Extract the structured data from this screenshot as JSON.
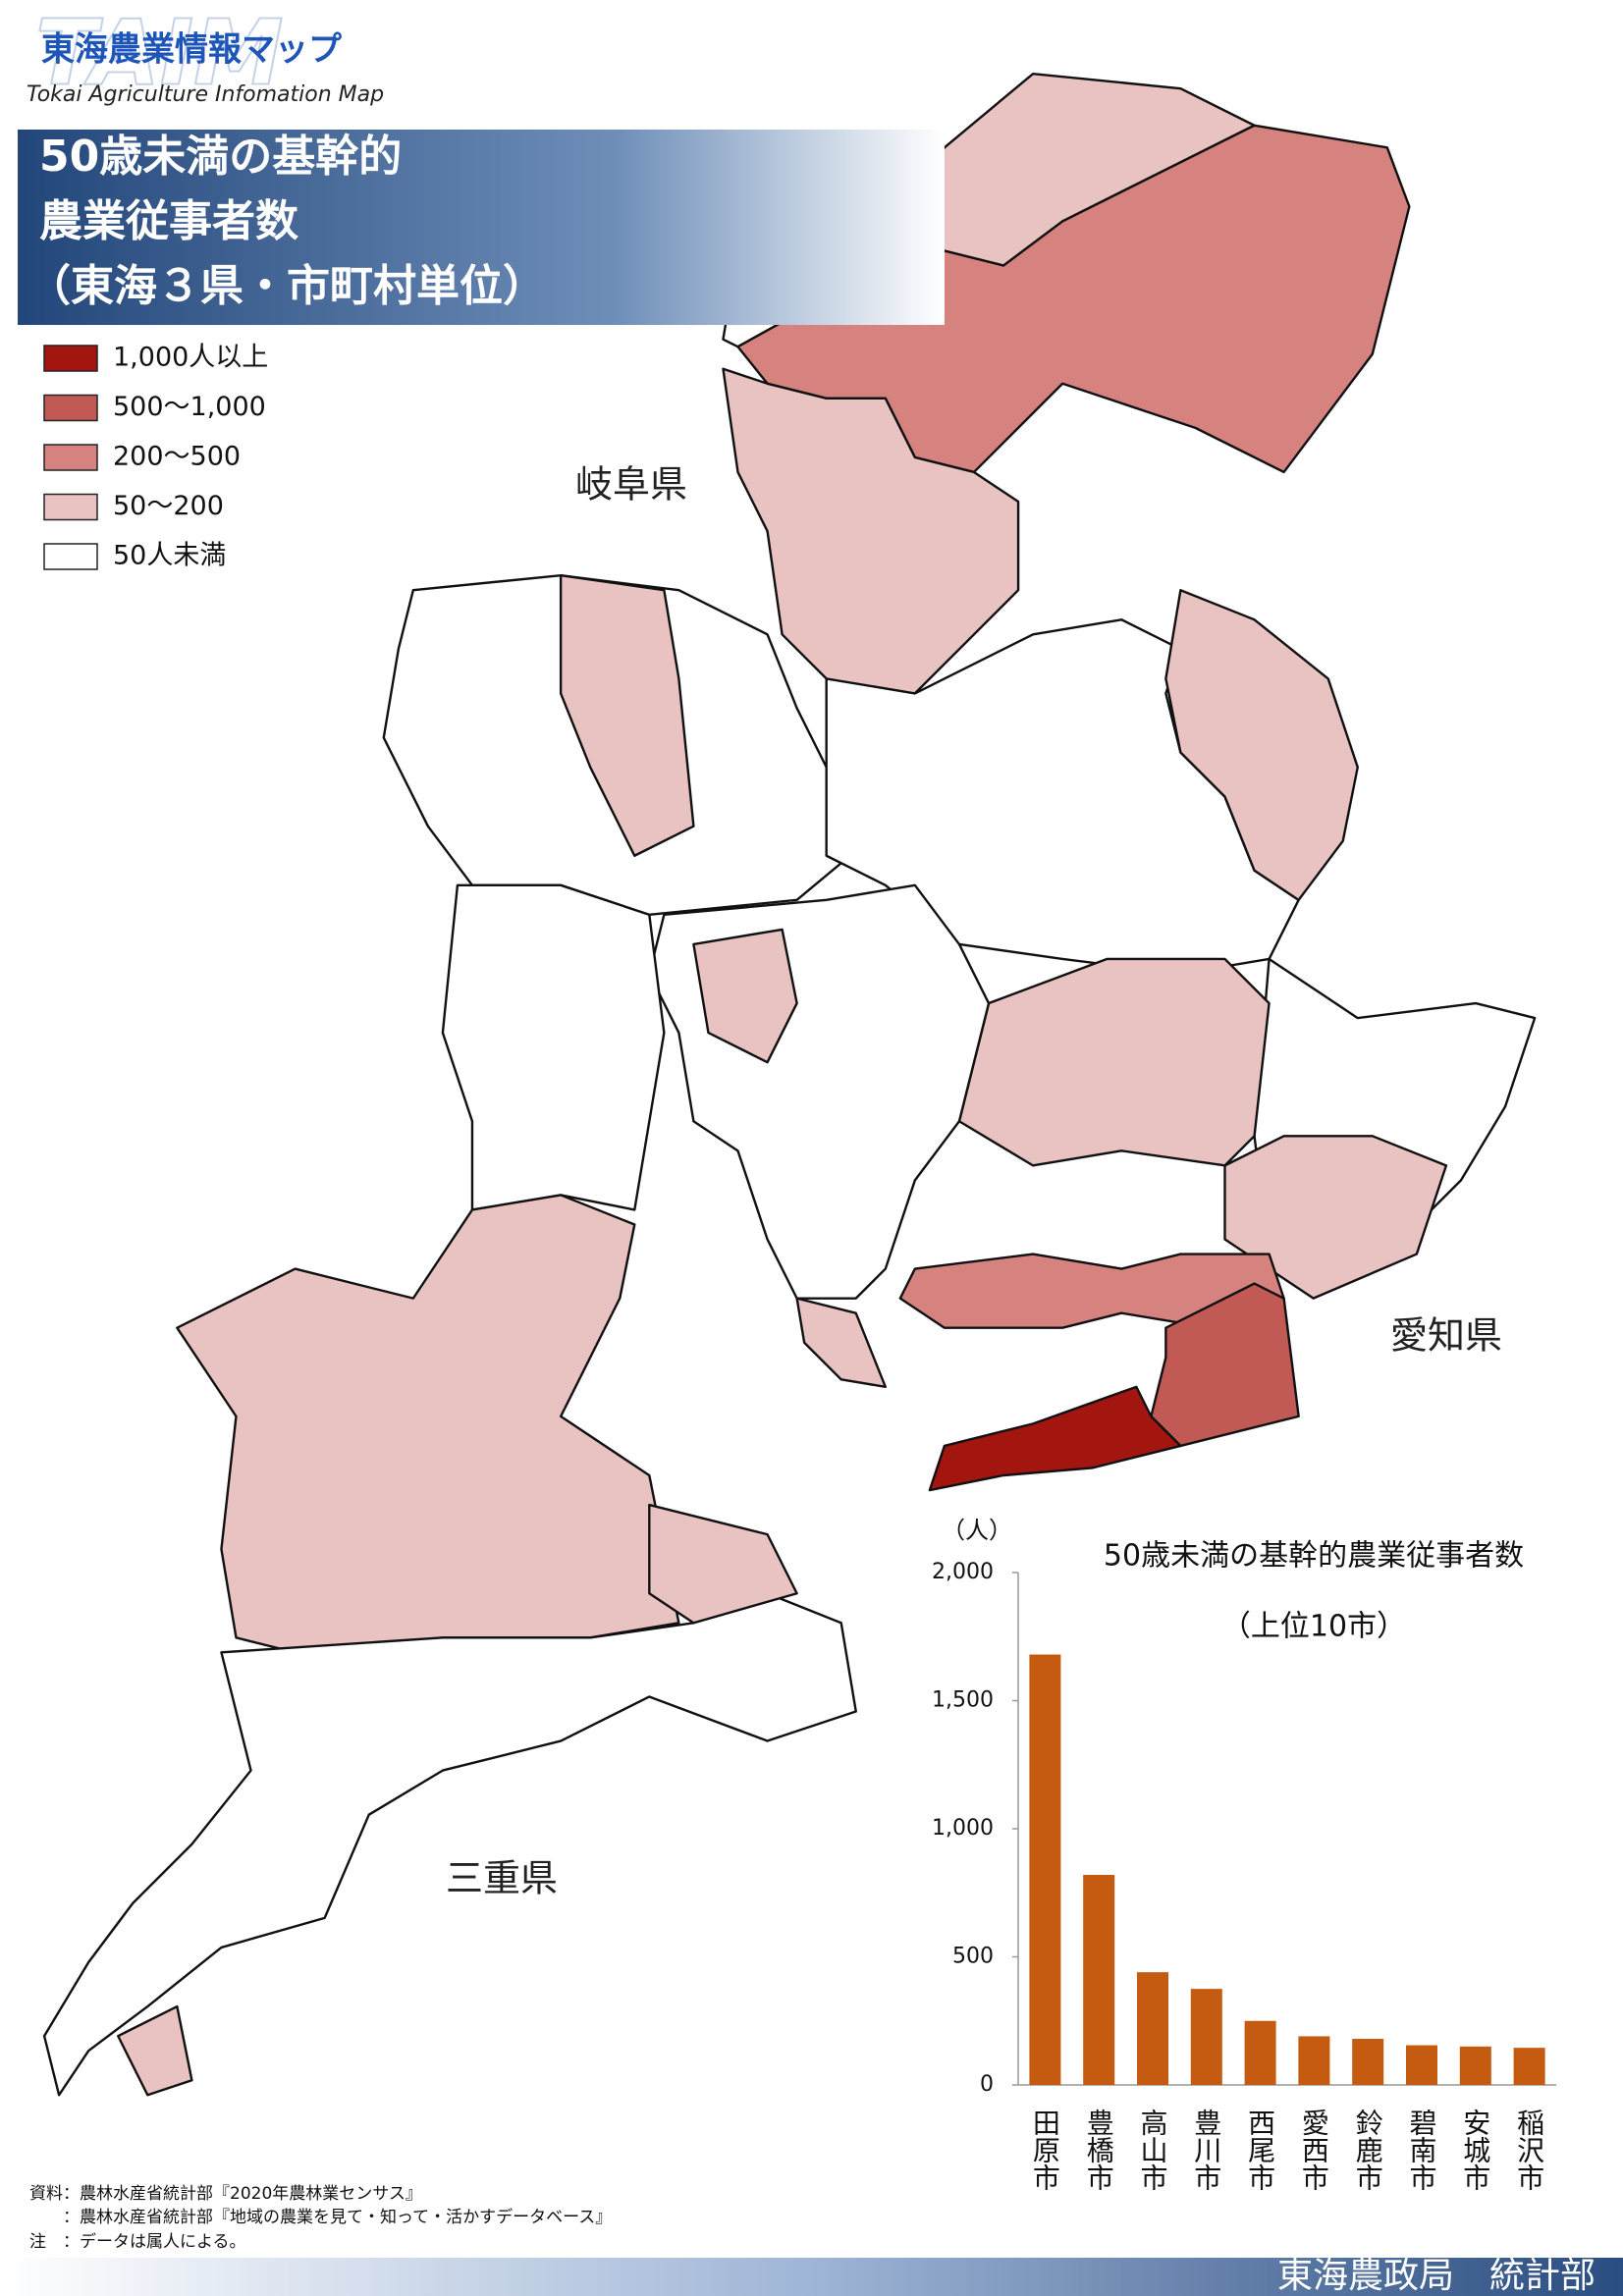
{
  "header": {
    "logo_mark": "TAIM",
    "logo": "東海農業情報マップ",
    "logo_sub": "Tokai Agriculture Infomation Map",
    "title_lines": [
      "50歳未満の基幹的",
      "農業従事者数",
      "（東海３県・市町村単位）"
    ]
  },
  "legend": {
    "items": [
      {
        "label": "1,000人以上",
        "color": "#a3150f"
      },
      {
        "label": "500～1,000",
        "color": "#c15a55"
      },
      {
        "label": "200～500",
        "color": "#d6837f"
      },
      {
        "label": "50～200",
        "color": "#e8c3c2"
      },
      {
        "label": "50人未満",
        "color": "#ffffff"
      }
    ]
  },
  "map": {
    "prefectures": [
      "岐阜県",
      "愛知県",
      "三重県"
    ]
  },
  "chart_data": {
    "type": "bar",
    "title": "50歳未満の基幹的農業従事者数",
    "subtitle": "（上位10市）",
    "unit": "（人）",
    "categories": [
      "田原市",
      "豊橋市",
      "高山市",
      "豊川市",
      "西尾市",
      "愛西市",
      "鈴鹿市",
      "碧南市",
      "安城市",
      "稲沢市"
    ],
    "values": [
      1680,
      820,
      440,
      375,
      250,
      190,
      180,
      155,
      150,
      145
    ],
    "color": "#c55a11",
    "ylim": [
      0,
      2000
    ],
    "yticks": [
      0,
      500,
      {
        "value": 1000,
        "label": "1,000"
      },
      {
        "value": 1500,
        "label": "1,500"
      },
      {
        "value": 2000,
        "label": "2,000"
      }
    ],
    "grid": false
  },
  "notes": [
    "資料：農林水産省統計部『2020年農林業センサス』",
    "　　：農林水産省統計部『地域の農業を見て・知って・活かすデータベース』",
    "注　：データは属人による。"
  ],
  "footer": {
    "text": "東海農政局　統計部"
  }
}
